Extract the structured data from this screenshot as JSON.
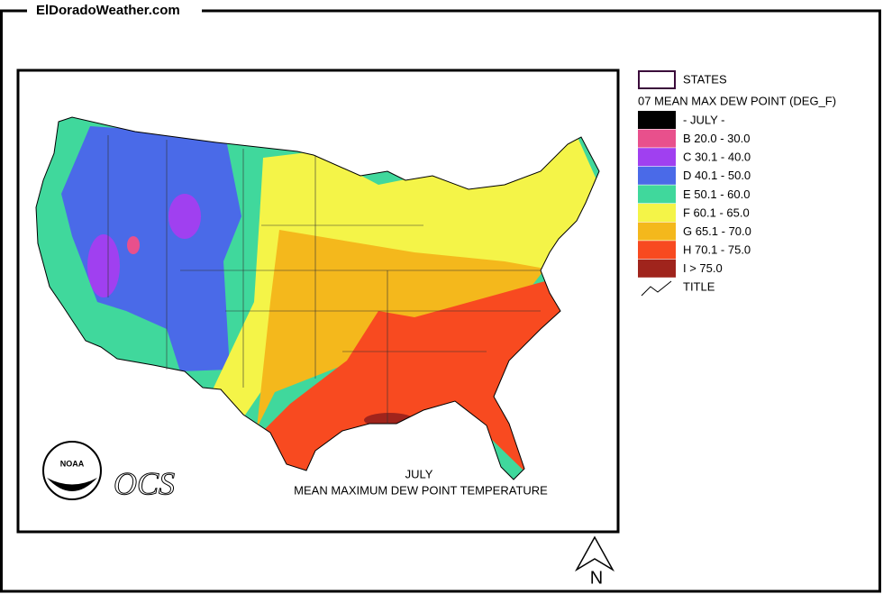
{
  "header": {
    "site": "ElDoradoWeather.com"
  },
  "legend": {
    "states_label": "STATES",
    "title": "07 MEAN MAX DEW POINT (DEG_F)",
    "items": [
      {
        "label": "- JULY -",
        "color": "#000000"
      },
      {
        "label": "B 20.0 - 30.0",
        "color": "#e8508c"
      },
      {
        "label": "C 30.1 - 40.0",
        "color": "#a040f0"
      },
      {
        "label": "D 40.1 - 50.0",
        "color": "#4a6ae8"
      },
      {
        "label": "E 50.1 - 60.0",
        "color": "#40d89c"
      },
      {
        "label": "F 60.1 - 65.0",
        "color": "#f4f448"
      },
      {
        "label": "G 65.1 - 70.0",
        "color": "#f4b81c"
      },
      {
        "label": "H 70.1 - 75.0",
        "color": "#f84a20"
      },
      {
        "label": "I > 75.0",
        "color": "#a0241c"
      }
    ],
    "line_label": "TITLE"
  },
  "map": {
    "title": "JULY",
    "subtitle": "MEAN MAXIMUM DEW POINT TEMPERATURE",
    "agency": "OCS",
    "logo": "NOAA",
    "north": "N"
  }
}
